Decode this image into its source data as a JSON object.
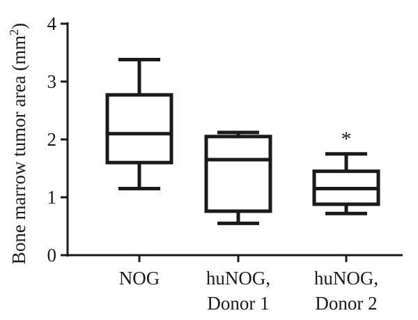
{
  "chart_data": {
    "type": "boxplot",
    "title": "",
    "ylabel": "Bone marrow tumor area (mm",
    "ylabel_superscript": "2",
    "ylabel_close": ")",
    "xlabel": "",
    "ylim": [
      0,
      4
    ],
    "yticks": [
      "0",
      "1",
      "2",
      "3",
      "4"
    ],
    "grid": false,
    "categories": [
      {
        "lines": [
          "NOG"
        ]
      },
      {
        "lines": [
          "huNOG,",
          "Donor 1"
        ]
      },
      {
        "lines": [
          "huNOG,",
          "Donor 2"
        ]
      }
    ],
    "boxes": [
      {
        "min": 1.15,
        "q1": 1.6,
        "median": 2.1,
        "q3": 2.77,
        "max": 3.38
      },
      {
        "min": 0.55,
        "q1": 0.76,
        "median": 1.65,
        "q3": 2.05,
        "max": 2.12
      },
      {
        "min": 0.72,
        "q1": 0.88,
        "median": 1.15,
        "q3": 1.45,
        "max": 1.75
      }
    ],
    "annotations": [
      {
        "category_index": 2,
        "text": "*"
      }
    ],
    "color": "#1a1a1a"
  }
}
